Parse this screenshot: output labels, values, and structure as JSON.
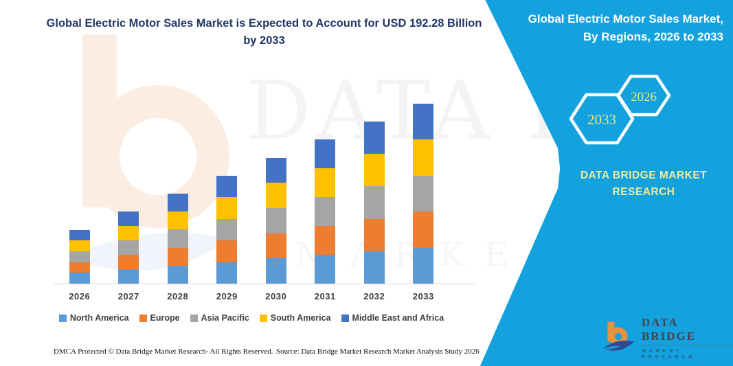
{
  "title": {
    "text": "Global Electric Motor Sales Market is Expected to Account for USD 192.28 Billion by 2033",
    "color": "#1F3864"
  },
  "side_panel": {
    "accent_color": "#14A2DE",
    "heading_line1": "Global Electric Motor Sales Market,",
    "heading_line2": "By Regions, 2026 to 2033",
    "hexagons": {
      "back": "2033",
      "front": "2026"
    },
    "hexagon_text_color": "#E9E583",
    "brand_line1": "DATA BRIDGE MARKET",
    "brand_line2": "RESEARCH",
    "brand_text_color": "#EFEC9C"
  },
  "chart_data": {
    "type": "bar",
    "stacked": true,
    "title": "Global Electric Motor Sales Market, By Regions, 2026 to 2033",
    "unit": "USD Billion",
    "categories": [
      "2026",
      "2027",
      "2028",
      "2029",
      "2030",
      "2031",
      "2032",
      "2033"
    ],
    "series": [
      {
        "name": "North America",
        "color": "#5B9BD5",
        "values": [
          11.54,
          15.38,
          19.23,
          23.07,
          26.92,
          30.76,
          34.61,
          38.46
        ]
      },
      {
        "name": "Europe",
        "color": "#ED7D31",
        "values": [
          11.54,
          15.38,
          19.23,
          23.07,
          26.92,
          30.76,
          34.61,
          38.46
        ]
      },
      {
        "name": "Asia Pacific",
        "color": "#A5A5A5",
        "values": [
          11.54,
          15.38,
          19.23,
          23.07,
          26.92,
          30.76,
          34.61,
          38.46
        ]
      },
      {
        "name": "South America",
        "color": "#FFC000",
        "values": [
          11.54,
          15.38,
          19.23,
          23.07,
          26.92,
          30.76,
          34.61,
          38.46
        ]
      },
      {
        "name": "Middle East and Africa",
        "color": "#4472C4",
        "values": [
          11.54,
          15.38,
          19.23,
          23.07,
          26.92,
          30.76,
          34.61,
          38.46
        ]
      }
    ],
    "totals": [
      57.68,
      76.91,
      96.14,
      115.37,
      134.6,
      153.82,
      173.05,
      192.28
    ],
    "ylim": [
      0,
      192.28
    ],
    "y_axis_visible": false,
    "grid": false,
    "legend_position": "bottom"
  },
  "watermark": {
    "text_top": "DATA BRIDGE",
    "text_bottom": "MARKET RESEARCH"
  },
  "footer": {
    "left": "DMCA Protected © Data Bridge Market Research-  All Rights Reserved.",
    "source": "Source: Data Bridge Market Research  Market Analysis Study 2026"
  },
  "logo": {
    "brand": "DATA BRIDGE",
    "tagline": "MARKET RESEARCH"
  }
}
